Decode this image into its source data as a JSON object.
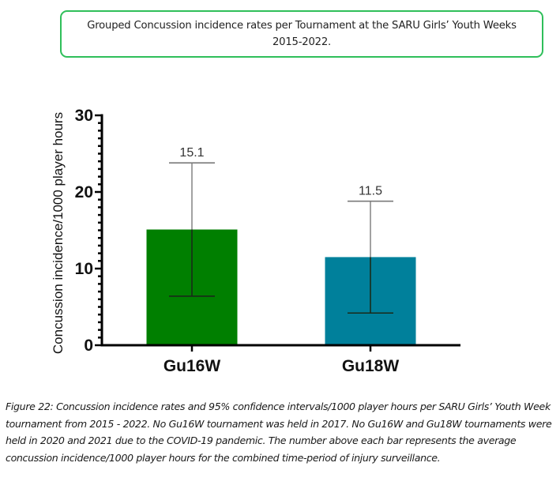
{
  "title_box": {
    "line1": "Grouped Concussion incidence rates per Tournament at the SARU Girls’ Youth Weeks",
    "line2": "2015-2022."
  },
  "caption": "Figure 22: Concussion incidence rates and 95% confidence intervals/1000 player hours per SARU Girls’ Youth Week tournament from 2015 - 2022. No Gu16W tournament was held in 2017. No Gu16W and Gu18W tournaments were held in 2020 and 2021 due to the COVID-19 pandemic. The number above each bar represents the average concussion incidence/1000 player hours for the combined time-period of injury surveillance.",
  "chart_data": {
    "type": "bar",
    "title": "Grouped Concussion incidence rates per Tournament at the SARU Girls’ Youth Weeks 2015-2022.",
    "xlabel": "",
    "ylabel": "Concussion incidence/1000 player hours",
    "ylim": [
      0,
      30
    ],
    "yticks": [
      0,
      10,
      20,
      30
    ],
    "minor_tick_step": 1,
    "grid": false,
    "legend": "none",
    "categories": [
      "Gu16W",
      "Gu18W"
    ],
    "values": [
      15.1,
      11.5
    ],
    "data_labels": [
      "15.1",
      "11.5"
    ],
    "error_bars": [
      {
        "lower": 6.4,
        "upper": 23.8
      },
      {
        "lower": 4.2,
        "upper": 18.8
      }
    ],
    "colors": [
      "#007f00",
      "#00809b"
    ]
  }
}
